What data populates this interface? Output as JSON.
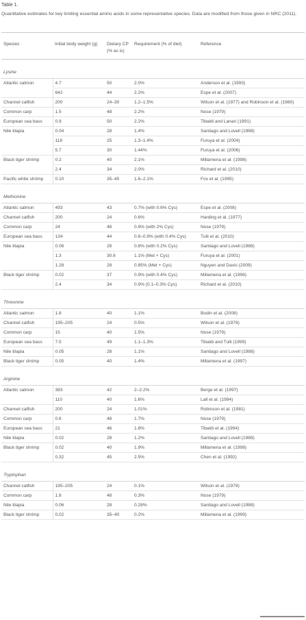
{
  "table_title": "Table 1.",
  "caption": "Quantitative estimates for key limiting essential amino acids in some representative species. Data are modified from those given in NRC (2011).",
  "columns": [
    "Species",
    "Initial body weight (g)",
    "Dietary CP (% as is)",
    "Requirement (% of diet)",
    "Reference"
  ],
  "groups": [
    {
      "name": "Lysine",
      "rows": [
        [
          "Atlantic salmon",
          "4.7",
          "50",
          "2.0%",
          "Anderson et al. (1993)"
        ],
        [
          "",
          "642",
          "44",
          "2.2%",
          "Espe et al. (2007)"
        ],
        [
          "Channel catfish",
          "200",
          "24–30",
          "1.2–1.5%",
          "Wilson et al. (1977) and Robinson et al. (1980)"
        ],
        [
          "Common carp",
          "1.5",
          "48",
          "2.2%",
          "Nose (1979)"
        ],
        [
          "European sea bass",
          "0.9",
          "50",
          "2.2%",
          "Tibaldi and Lanari (1991)"
        ],
        [
          "Nile tilapia",
          "0.04",
          "28",
          "1.4%",
          "Santiago and Lovell (1988)"
        ],
        [
          "",
          "118",
          "25",
          "1.3–1.4%",
          "Furuya et al. (2004)"
        ],
        [
          "",
          "5.7",
          "30",
          "1.44%",
          "Furuya et al. (2006)"
        ],
        [
          "Black tiger shrimp",
          "0.2",
          "40",
          "2.1%",
          "Millamena et al. (1998)"
        ],
        [
          "",
          "2.4",
          "34",
          "2.0%",
          "Richard et al. (2010)"
        ],
        [
          "Pacific white shrimp",
          "0.10",
          "35–45",
          "1.6–2.1%",
          "Fox et al. (1995)"
        ]
      ]
    },
    {
      "name": "Methionine",
      "rows": [
        [
          "Atlantic salmon",
          "493",
          "43",
          "0.7% (with 0.6% Cys)",
          "Espe et al. (2008)"
        ],
        [
          "Channel catfish",
          "200",
          "24",
          "0.6%",
          "Harding et al. (1977)"
        ],
        [
          "Common carp",
          "24",
          "48",
          "0.8% (with 2% Cys)",
          "Nose (1979)"
        ],
        [
          "European sea bass",
          "134",
          "44",
          "0.8–0.9% (with 0.4% Cys)",
          "Tulli et al. (2010)"
        ],
        [
          "Nile tilapia",
          "0.06",
          "28",
          "0.8% (with 0.2% Cys)",
          "Santiago and Lovell (1988)"
        ],
        [
          "",
          "1.3",
          "30.6",
          "1.1% (Met + Cys)",
          "Furuya et al. (2001)"
        ],
        [
          "",
          "1.28",
          "28",
          "0.85% (Met + Cys)",
          "Nguyen and Davis (2009)"
        ],
        [
          "Black tiger shrimp",
          "0.02",
          "37",
          "0.9% (with 0.4% Cys)",
          "Millamena et al. (1996)"
        ],
        [
          "",
          "2.4",
          "34",
          "0.9% (0.1–0.3% Cys)",
          "Richard et al. (2010)"
        ]
      ]
    },
    {
      "name": "Threonine",
      "rows": [
        [
          "Atlantic salmon",
          "1.8",
          "40",
          "1.1%",
          "Bodin et al. (2008)"
        ],
        [
          "Channel catfish",
          "195–205",
          "24",
          "0.5%",
          "Wilson et al. (1978)"
        ],
        [
          "Common carp",
          "15",
          "40",
          "1.5%",
          "Nose (1979)"
        ],
        [
          "European sea bass",
          "7.5",
          "49",
          "1.1–1.3%",
          "Tibaldi and Tulli (1999)"
        ],
        [
          "Nile tilapia",
          "0.05",
          "28",
          "1.1%",
          "Santiago and Lovell (1988)"
        ],
        [
          "Black tiger shrimp",
          "0.05",
          "40",
          "1.4%",
          "Millamena et al. (1997)"
        ]
      ]
    },
    {
      "name": "Arginine",
      "rows": [
        [
          "Atlantic salmon",
          "383",
          "42",
          "2–2.2%",
          "Berge et al. (1997)"
        ],
        [
          "",
          "110",
          "40",
          "1.6%",
          "Lall et al. (1994)"
        ],
        [
          "Channel catfish",
          "200",
          "24",
          "1.01%",
          "Robinson et al. (1981)"
        ],
        [
          "Common carp",
          "0.6",
          "48",
          "1.7%",
          "Nose (1979)"
        ],
        [
          "European sea bass",
          "21",
          "46",
          "1.8%",
          "Tibaldi et al. (1994)"
        ],
        [
          "Nile tilapia",
          "0.02",
          "28",
          "1.2%",
          "Santiago and Lovell (1988)"
        ],
        [
          "Black tiger shrimp",
          "0.02",
          "40",
          "1.9%",
          "Millamena et al. (1998)"
        ],
        [
          "",
          "0.32",
          "45",
          "2.5%",
          "Chen et al. (1992)"
        ]
      ]
    },
    {
      "name": "Tryptophan",
      "rows": [
        [
          "Channel catfish",
          "195–205",
          "24",
          "0.1%",
          "Wilson et al. (1978)"
        ],
        [
          "Common carp",
          "1.8",
          "48",
          "0.3%",
          "Nose (1979)"
        ],
        [
          "Nile tilapia",
          "0.06",
          "28",
          "0.28%",
          "Santiago and Lovell (1988)"
        ],
        [
          "Black tiger shrimp",
          "0.02",
          "35–40",
          "0.2%",
          "Millamena et al. (1999)"
        ]
      ]
    }
  ]
}
